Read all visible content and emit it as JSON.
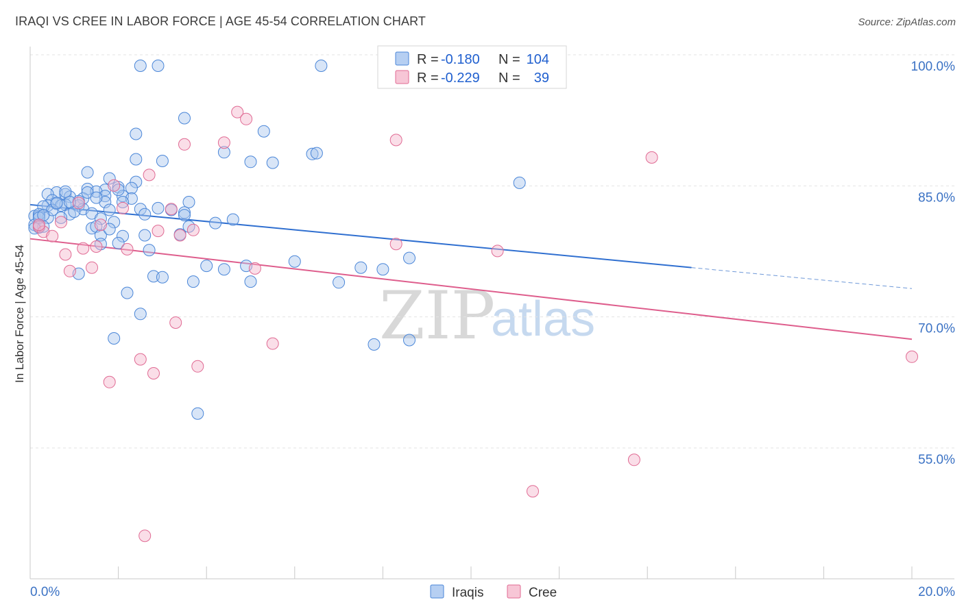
{
  "header": {
    "title": "IRAQI VS CREE IN LABOR FORCE | AGE 45-54 CORRELATION CHART",
    "source": "Source: ZipAtlas.com"
  },
  "watermark": {
    "zip": "ZIP",
    "atlas": "atlas"
  },
  "legend": {
    "rows": [
      {
        "r_label": "R =",
        "r_value": "-0.180",
        "n_label": "N =",
        "n_value": "104"
      },
      {
        "r_label": "R =",
        "r_value": "-0.229",
        "n_label": "N =",
        "n_value": "39"
      }
    ]
  },
  "bottom_legend": {
    "iraqis": "Iraqis",
    "cree": "Cree"
  },
  "chart_data": {
    "type": "scatter",
    "title": "IRAQI VS CREE IN LABOR FORCE | AGE 45-54 CORRELATION CHART",
    "xlabel": "",
    "ylabel": "In Labor Force | Age 45-54",
    "xlim": [
      0,
      20
    ],
    "ylim": [
      40,
      102
    ],
    "x_tick_labels": [
      "0.0%",
      "20.0%"
    ],
    "y_ticks": [
      55,
      70,
      85,
      100
    ],
    "y_tick_labels": [
      "55.0%",
      "70.0%",
      "85.0%",
      "100.0%"
    ],
    "grid": true,
    "colors": {
      "iraqis": "#4a86d8",
      "iraqis_fill": "#a8c6ee",
      "cree": "#e06a93",
      "cree_fill": "#f4b6cb"
    },
    "series": [
      {
        "name": "Iraqis",
        "R": -0.18,
        "N": 104,
        "trend": {
          "x0": 0.0,
          "y0": 84.1,
          "x1": 15.0,
          "y1": 76.9,
          "dash_to": 20.0,
          "dash_y": 74.5
        },
        "points": [
          [
            2.5,
            100
          ],
          [
            2.9,
            100
          ],
          [
            6.6,
            100
          ],
          [
            3.5,
            94.0
          ],
          [
            2.4,
            92.2
          ],
          [
            5.3,
            92.5
          ],
          [
            4.4,
            90.1
          ],
          [
            6.4,
            89.9
          ],
          [
            2.4,
            89.3
          ],
          [
            3.0,
            89.1
          ],
          [
            5.0,
            89.0
          ],
          [
            5.5,
            88.9
          ],
          [
            1.3,
            87.8
          ],
          [
            1.8,
            87.1
          ],
          [
            2.4,
            86.7
          ],
          [
            2.0,
            86.1
          ],
          [
            2.3,
            86.0
          ],
          [
            1.3,
            85.9
          ],
          [
            1.7,
            85.8
          ],
          [
            1.5,
            85.6
          ],
          [
            0.6,
            85.5
          ],
          [
            0.8,
            85.3
          ],
          [
            0.4,
            85.3
          ],
          [
            0.9,
            85.0
          ],
          [
            1.2,
            84.8
          ],
          [
            0.5,
            84.6
          ],
          [
            1.7,
            85.1
          ],
          [
            2.1,
            85.1
          ],
          [
            3.6,
            84.4
          ],
          [
            0.4,
            84.0
          ],
          [
            0.6,
            84.2
          ],
          [
            0.8,
            84.1
          ],
          [
            1.1,
            84.0
          ],
          [
            0.3,
            83.9
          ],
          [
            1.2,
            83.6
          ],
          [
            1.7,
            84.4
          ],
          [
            1.4,
            83.1
          ],
          [
            0.9,
            83.0
          ],
          [
            2.5,
            83.6
          ],
          [
            2.6,
            83.0
          ],
          [
            3.2,
            83.5
          ],
          [
            3.5,
            83.2
          ],
          [
            0.1,
            82.8
          ],
          [
            0.2,
            82.8
          ],
          [
            0.4,
            82.6
          ],
          [
            0.7,
            82.6
          ],
          [
            1.6,
            82.5
          ],
          [
            1.9,
            82.1
          ],
          [
            4.6,
            82.4
          ],
          [
            4.2,
            82.0
          ],
          [
            0.1,
            81.8
          ],
          [
            0.2,
            81.5
          ],
          [
            0.3,
            81.6
          ],
          [
            1.4,
            81.4
          ],
          [
            1.5,
            81.6
          ],
          [
            3.6,
            81.6
          ],
          [
            1.6,
            80.6
          ],
          [
            2.1,
            80.5
          ],
          [
            2.6,
            80.6
          ],
          [
            3.4,
            80.7
          ],
          [
            2.0,
            79.7
          ],
          [
            1.6,
            79.6
          ],
          [
            2.7,
            78.9
          ],
          [
            8.6,
            78.0
          ],
          [
            6.0,
            77.6
          ],
          [
            4.0,
            77.1
          ],
          [
            4.9,
            77.1
          ],
          [
            7.5,
            76.9
          ],
          [
            8.0,
            76.7
          ],
          [
            4.4,
            76.7
          ],
          [
            1.1,
            76.2
          ],
          [
            2.8,
            75.9
          ],
          [
            3.0,
            75.8
          ],
          [
            3.7,
            75.3
          ],
          [
            5.0,
            75.3
          ],
          [
            7.0,
            75.2
          ],
          [
            2.2,
            74.0
          ],
          [
            2.5,
            71.6
          ],
          [
            1.9,
            68.8
          ],
          [
            7.8,
            68.1
          ],
          [
            8.6,
            68.6
          ],
          [
            3.8,
            60.2
          ],
          [
            11.1,
            86.6
          ],
          [
            6.5,
            90.0
          ],
          [
            1.1,
            84.5
          ],
          [
            1.3,
            85.5
          ],
          [
            0.7,
            84.0
          ],
          [
            0.2,
            83.0
          ],
          [
            0.5,
            83.5
          ],
          [
            1.0,
            83.3
          ],
          [
            1.8,
            83.5
          ],
          [
            2.3,
            84.8
          ],
          [
            3.5,
            82.9
          ],
          [
            2.9,
            83.7
          ],
          [
            0.9,
            84.4
          ],
          [
            1.5,
            84.9
          ],
          [
            0.6,
            84.3
          ],
          [
            0.2,
            82.6
          ],
          [
            0.1,
            81.4
          ],
          [
            0.3,
            82.9
          ],
          [
            1.8,
            81.3
          ],
          [
            2.0,
            85.8
          ],
          [
            2.1,
            84.4
          ],
          [
            0.8,
            85.6
          ]
        ]
      },
      {
        "name": "Cree",
        "R": -0.229,
        "N": 39,
        "trend": {
          "x0": 0.0,
          "y0": 80.2,
          "x1": 20.0,
          "y1": 68.7
        },
        "points": [
          [
            4.7,
            94.7
          ],
          [
            4.9,
            93.9
          ],
          [
            3.5,
            91.0
          ],
          [
            4.4,
            91.2
          ],
          [
            8.3,
            91.5
          ],
          [
            14.1,
            89.5
          ],
          [
            2.7,
            87.5
          ],
          [
            1.9,
            86.3
          ],
          [
            1.1,
            84.3
          ],
          [
            2.1,
            83.7
          ],
          [
            3.2,
            83.6
          ],
          [
            0.2,
            81.6
          ],
          [
            0.3,
            81.0
          ],
          [
            0.2,
            81.8
          ],
          [
            0.7,
            82.1
          ],
          [
            0.5,
            80.5
          ],
          [
            1.6,
            81.8
          ],
          [
            2.9,
            81.1
          ],
          [
            3.4,
            80.6
          ],
          [
            3.7,
            81.2
          ],
          [
            1.2,
            79.1
          ],
          [
            1.5,
            79.3
          ],
          [
            2.2,
            79.0
          ],
          [
            0.8,
            78.4
          ],
          [
            8.3,
            79.6
          ],
          [
            10.6,
            78.8
          ],
          [
            1.4,
            76.9
          ],
          [
            0.9,
            76.5
          ],
          [
            5.1,
            76.8
          ],
          [
            3.3,
            70.6
          ],
          [
            5.5,
            68.2
          ],
          [
            2.5,
            66.4
          ],
          [
            3.8,
            65.6
          ],
          [
            2.8,
            64.8
          ],
          [
            1.8,
            63.8
          ],
          [
            20.0,
            66.7
          ],
          [
            13.7,
            54.9
          ],
          [
            11.4,
            51.3
          ],
          [
            2.6,
            46.2
          ]
        ]
      }
    ]
  }
}
